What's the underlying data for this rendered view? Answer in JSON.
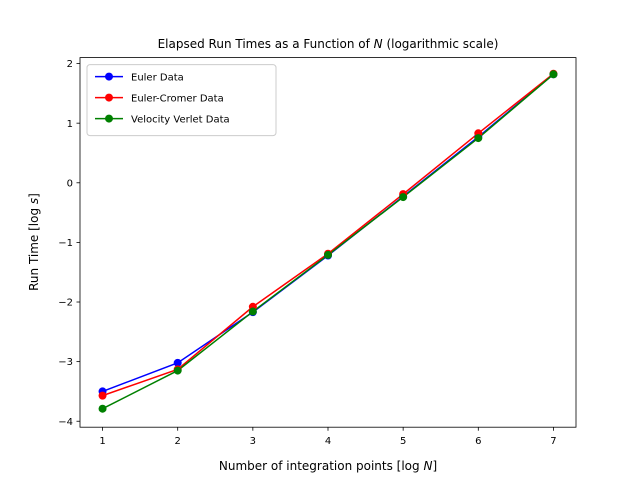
{
  "chart_data": {
    "type": "line",
    "title": {
      "prefix": "Elapsed Run Times as a Function of ",
      "variable": "N",
      "suffix": " (logarithmic scale)"
    },
    "xlabel": {
      "prefix": "Number of integration points [log ",
      "variable": "N",
      "suffix": "]"
    },
    "ylabel": {
      "prefix": "Run Time [log ",
      "variable": "s",
      "suffix": "]"
    },
    "x": [
      1,
      2,
      3,
      4,
      5,
      6,
      7
    ],
    "xlim": [
      0.7,
      7.3
    ],
    "ylim": [
      -4.1,
      2.1
    ],
    "xticks": [
      1,
      2,
      3,
      4,
      5,
      6,
      7
    ],
    "xtick_labels": [
      "1",
      "2",
      "3",
      "4",
      "5",
      "6",
      "7"
    ],
    "yticks": [
      -4,
      -3,
      -2,
      -1,
      0,
      1,
      2
    ],
    "ytick_labels": [
      "−4",
      "−3",
      "−2",
      "−1",
      "0",
      "1",
      "2"
    ],
    "grid": false,
    "legend_position": "upper-left",
    "series": [
      {
        "name": "Euler Data",
        "color": "#0000ff",
        "values": [
          -3.5,
          -3.02,
          -2.17,
          -1.22,
          -0.23,
          0.77,
          1.82
        ]
      },
      {
        "name": "Euler-Cromer Data",
        "color": "#ff0000",
        "values": [
          -3.57,
          -3.13,
          -2.08,
          -1.19,
          -0.19,
          0.83,
          1.83
        ]
      },
      {
        "name": "Velocity Verlet Data",
        "color": "#008000",
        "values": [
          -3.79,
          -3.15,
          -2.16,
          -1.21,
          -0.24,
          0.75,
          1.82
        ]
      }
    ]
  }
}
